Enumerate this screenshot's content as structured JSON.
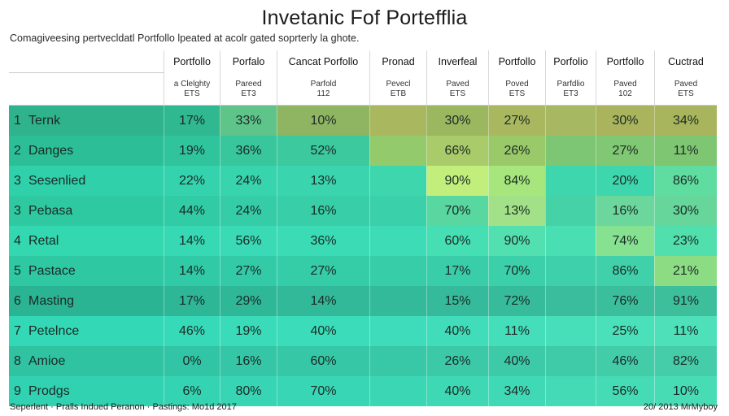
{
  "header": {
    "title": "Invetanic Fof Portefflia",
    "subtitle": "Comagiveesing pertvecldatl Portfollo lpeated at acolr gated soprterly la ghote."
  },
  "chart_data": {
    "type": "table",
    "columns": [
      {
        "name": "Portfollo",
        "sub": [
          "a Clelghty",
          "ETS"
        ]
      },
      {
        "name": "Porfalo",
        "sub": [
          "Pareed",
          "ET3"
        ]
      },
      {
        "name": "Cancat Porfollo",
        "sub": [
          "Parfold",
          "112"
        ]
      },
      {
        "name": "Pronad",
        "sub": [
          "Pevecl",
          "ETB"
        ]
      },
      {
        "name": "Inverfeal",
        "sub": [
          "Paved",
          "ETS"
        ]
      },
      {
        "name": "Portfollo",
        "sub": [
          "Poved",
          "ETS"
        ]
      },
      {
        "name": "Porfolio",
        "sub": [
          "Parfdlio",
          "ET3"
        ]
      },
      {
        "name": "Portfollo",
        "sub": [
          "Paved",
          "102"
        ]
      },
      {
        "name": "Cuctrad",
        "sub": [
          "Paved",
          "ETS"
        ]
      }
    ],
    "rows": [
      {
        "num": "1",
        "label": "Ternk",
        "values": [
          "17%",
          "33%",
          "10%",
          "",
          "30%",
          "27%",
          "",
          "30%",
          "34%"
        ]
      },
      {
        "num": "2",
        "label": "Danges",
        "values": [
          "19%",
          "36%",
          "52%",
          "",
          "66%",
          "26%",
          "",
          "27%",
          "11%"
        ]
      },
      {
        "num": "3",
        "label": "Sesenlied",
        "values": [
          "22%",
          "24%",
          "13%",
          "",
          "90%",
          "84%",
          "",
          "20%",
          "86%"
        ]
      },
      {
        "num": "3",
        "label": "Pebasa",
        "values": [
          "44%",
          "24%",
          "16%",
          "",
          "70%",
          "13%",
          "",
          "16%",
          "30%"
        ]
      },
      {
        "num": "4",
        "label": "Retal",
        "values": [
          "14%",
          "56%",
          "36%",
          "",
          "60%",
          "90%",
          "",
          "74%",
          "23%"
        ]
      },
      {
        "num": "5",
        "label": "Pastace",
        "values": [
          "14%",
          "27%",
          "27%",
          "",
          "17%",
          "70%",
          "",
          "86%",
          "21%"
        ]
      },
      {
        "num": "6",
        "label": "Masting",
        "values": [
          "17%",
          "29%",
          "14%",
          "",
          "15%",
          "72%",
          "",
          "76%",
          "91%"
        ]
      },
      {
        "num": "7",
        "label": "Petelnce",
        "values": [
          "46%",
          "19%",
          "40%",
          "",
          "40%",
          "11%",
          "",
          "25%",
          "11%"
        ]
      },
      {
        "num": "8",
        "label": "Amioe",
        "values": [
          "0%",
          "16%",
          "60%",
          "",
          "26%",
          "40%",
          "",
          "46%",
          "82%"
        ]
      },
      {
        "num": "9",
        "label": "Prodgs",
        "values": [
          "6%",
          "80%",
          "70%",
          "",
          "40%",
          "34%",
          "",
          "56%",
          "10%"
        ]
      }
    ],
    "cell_colors": [
      [
        "#2fb38c",
        "#30b890",
        "#5fc48a",
        "#8fb563",
        "#a9b85f",
        "#9bb760",
        "#a9b85f",
        "#a6b962",
        "#a9b45c",
        "#a8b55c"
      ],
      [
        "#2cbf97",
        "#2fc49b",
        "#38c69c",
        "#3cc99d",
        "#93ca6c",
        "#a9cb6a",
        "#9ac96a",
        "#7dc674",
        "#80c873",
        "#7ec672"
      ],
      [
        "#30d0aa",
        "#34d3ae",
        "#38d4ae",
        "#3ad5ae",
        "#3ed6ad",
        "#c2ee7c",
        "#a6e67d",
        "#3ed6ad",
        "#3ed6ad",
        "#5fdc9f"
      ],
      [
        "#2ec9a1",
        "#31cca5",
        "#34cda7",
        "#37cea8",
        "#3ad0a9",
        "#58d7a0",
        "#a3e188",
        "#44d2a6",
        "#6cd79d",
        "#66d69b"
      ],
      [
        "#33d7b0",
        "#36d9b3",
        "#39dab5",
        "#3bdbb5",
        "#3edcb6",
        "#46deb3",
        "#53e0b1",
        "#4adfb3",
        "#86e291",
        "#50dfad"
      ],
      [
        "#2ec8a3",
        "#30caa6",
        "#33cba7",
        "#35cca8",
        "#37cda8",
        "#39cea9",
        "#3bcfaa",
        "#3dd0aa",
        "#40d1aa",
        "#8cdc84"
      ],
      [
        "#2bb493",
        "#2db797",
        "#2fb898",
        "#31b999",
        "#33ba9a",
        "#35bb9b",
        "#37bc9b",
        "#39bd9c",
        "#3bbe9c",
        "#3dbf9c"
      ],
      [
        "#33d9b6",
        "#36dab8",
        "#39dbb9",
        "#3bdcba",
        "#3edcba",
        "#41ddba",
        "#44deba",
        "#47dfba",
        "#4ae0ba",
        "#4de0b9"
      ],
      [
        "#2fc3a2",
        "#32c5a5",
        "#34c6a6",
        "#36c7a7",
        "#39c8a7",
        "#3bc9a8",
        "#3dcaa8",
        "#40cba8",
        "#42cca8",
        "#44cda8"
      ],
      [
        "#31d2b1",
        "#34d4b3",
        "#37d5b4",
        "#39d6b5",
        "#3bd7b5",
        "#3ed8b5",
        "#40d9b5",
        "#43dab5",
        "#45dbb5",
        "#48dcb5"
      ]
    ]
  },
  "footer": {
    "left": "Seperlent · Pralls Indued Peranon · Pastings: Mo1d 2017",
    "right": "20/ 2013 MrMyboy"
  }
}
